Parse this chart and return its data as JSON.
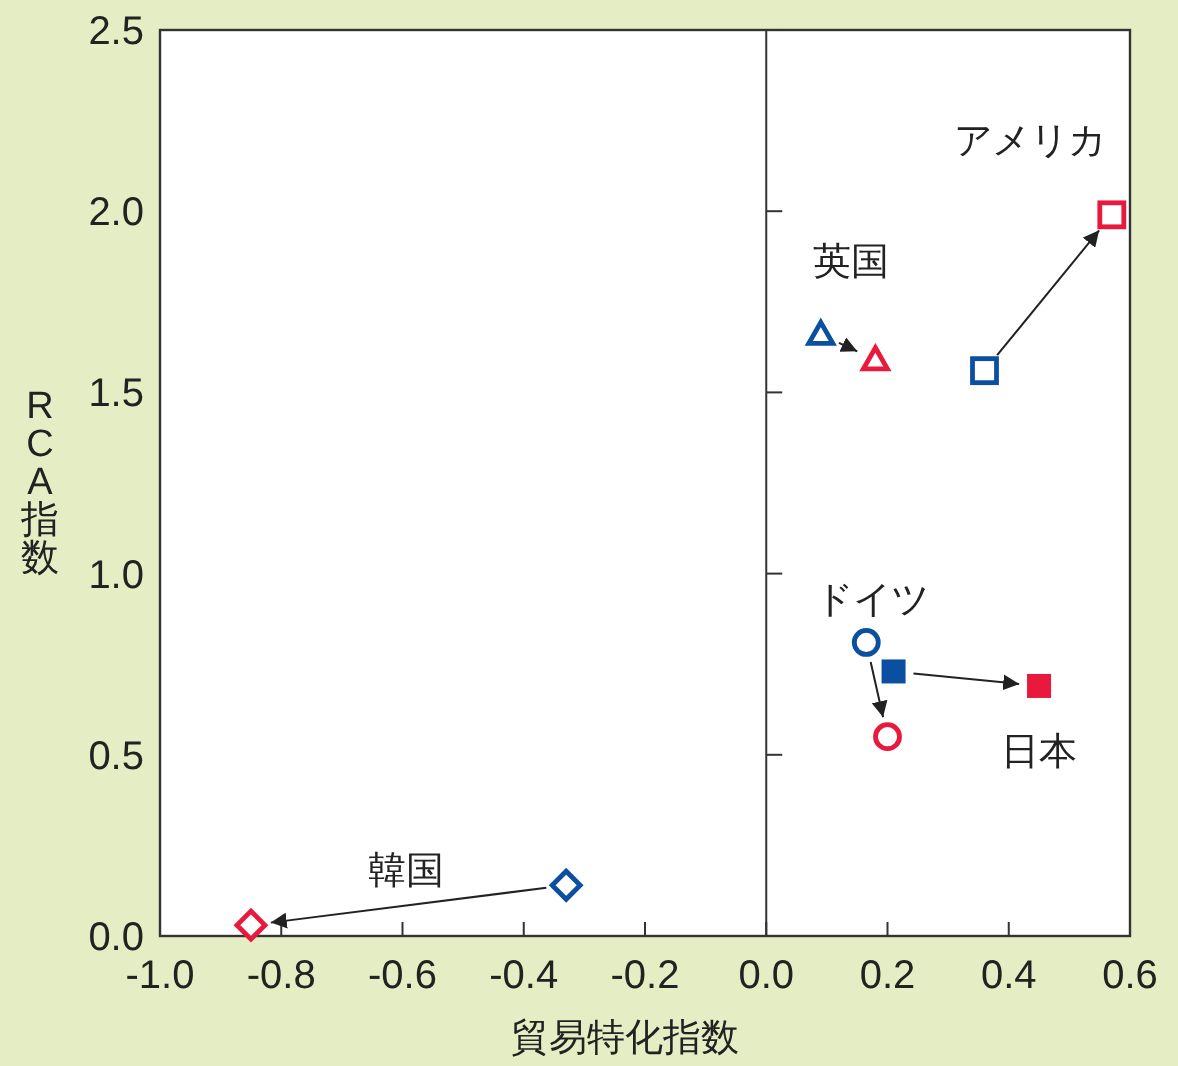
{
  "chart_data": {
    "type": "scatter",
    "xlabel": "貿易特化指数",
    "ylabel": "RCA指数",
    "xlim": [
      -1.0,
      0.6
    ],
    "xticks": [
      {
        "value": -1.0,
        "label": "-1.0"
      },
      {
        "value": -0.8,
        "label": "-0.8"
      },
      {
        "value": -0.6,
        "label": "-0.6"
      },
      {
        "value": -0.4,
        "label": "-0.4"
      },
      {
        "value": -0.2,
        "label": "-0.2"
      },
      {
        "value": 0,
        "label": "0.0"
      },
      {
        "value": 0.2,
        "label": "0.2"
      },
      {
        "value": 0.4,
        "label": "0.4"
      },
      {
        "value": 0.6,
        "label": "0.6"
      }
    ],
    "ylim": [
      0,
      2.5
    ],
    "yticks": [
      {
        "value": 0,
        "label": "0.0"
      },
      {
        "value": 0.5,
        "label": "0.5"
      },
      {
        "value": 1.0,
        "label": "1.0"
      },
      {
        "value": 1.5,
        "label": "1.5"
      },
      {
        "value": 2.0,
        "label": "2.0"
      },
      {
        "value": 2.5,
        "label": "2.5"
      }
    ],
    "ref_lines": [
      {
        "axis": "x",
        "value": 0,
        "color": "#333333"
      }
    ],
    "grid": false,
    "legend": false,
    "series": [
      {
        "name": "英国",
        "marker": "triangle",
        "colors": [
          "#0a4fa0",
          "#e8193c"
        ],
        "x": [
          0.09,
          0.18
        ],
        "values": [
          1.66,
          1.59
        ]
      },
      {
        "name": "アメリカ",
        "marker": "square",
        "colors": [
          "#0a4fa0",
          "#e8193c"
        ],
        "x": [
          0.36,
          0.57
        ],
        "values": [
          1.56,
          1.99
        ]
      },
      {
        "name": "ドイツ",
        "marker": "circle",
        "colors": [
          "#0a4fa0",
          "#e8193c"
        ],
        "x": [
          0.165,
          0.2
        ],
        "values": [
          0.81,
          0.55
        ]
      },
      {
        "name": "日本",
        "marker": "square",
        "colors": [
          "#0a4fa0",
          "#e8193c"
        ],
        "x": [
          0.21,
          0.45
        ],
        "values": [
          0.73,
          0.69
        ]
      },
      {
        "name": "韓国",
        "marker": "diamond",
        "colors": [
          "#0a4fa0",
          "#e8193c"
        ],
        "x": [
          -0.33,
          -0.85
        ],
        "values": [
          0.14,
          0.03
        ]
      }
    ]
  }
}
